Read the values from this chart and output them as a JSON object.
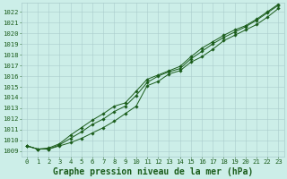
{
  "title": "Graphe pression niveau de la mer (hPa)",
  "background_color": "#cceee8",
  "grid_color": "#aacccc",
  "line_color": "#1a5c1a",
  "marker_color": "#1a5c1a",
  "xlim": [
    -0.5,
    23.5
  ],
  "ylim": [
    1008.5,
    1022.8
  ],
  "xticks": [
    0,
    1,
    2,
    3,
    4,
    5,
    6,
    7,
    8,
    9,
    10,
    11,
    12,
    13,
    14,
    15,
    16,
    17,
    18,
    19,
    20,
    21,
    22,
    23
  ],
  "yticks": [
    1009,
    1010,
    1011,
    1012,
    1013,
    1014,
    1015,
    1016,
    1017,
    1018,
    1019,
    1020,
    1021,
    1022
  ],
  "series": [
    [
      1009.5,
      1009.2,
      1009.2,
      1009.5,
      1009.8,
      1010.2,
      1010.7,
      1011.2,
      1011.8,
      1012.5,
      1013.2,
      1015.1,
      1015.5,
      1016.2,
      1016.5,
      1017.3,
      1017.8,
      1018.5,
      1019.3,
      1019.8,
      1020.3,
      1020.8,
      1021.5,
      1022.3
    ],
    [
      1009.5,
      1009.2,
      1009.2,
      1009.6,
      1010.2,
      1010.8,
      1011.5,
      1012.0,
      1012.7,
      1013.2,
      1014.2,
      1015.4,
      1016.0,
      1016.4,
      1016.7,
      1017.6,
      1018.3,
      1019.0,
      1019.6,
      1020.1,
      1020.6,
      1021.2,
      1021.9,
      1022.6
    ],
    [
      1009.5,
      1009.2,
      1009.3,
      1009.7,
      1010.5,
      1011.2,
      1011.9,
      1012.5,
      1013.2,
      1013.5,
      1014.6,
      1015.7,
      1016.1,
      1016.5,
      1016.9,
      1017.8,
      1018.6,
      1019.2,
      1019.8,
      1020.3,
      1020.7,
      1021.3,
      1022.0,
      1022.7
    ]
  ],
  "font_color": "#1a5c1a",
  "tick_fontsize": 5.2,
  "title_fontsize": 7.0,
  "linewidth": 0.7,
  "markersize": 1.8
}
